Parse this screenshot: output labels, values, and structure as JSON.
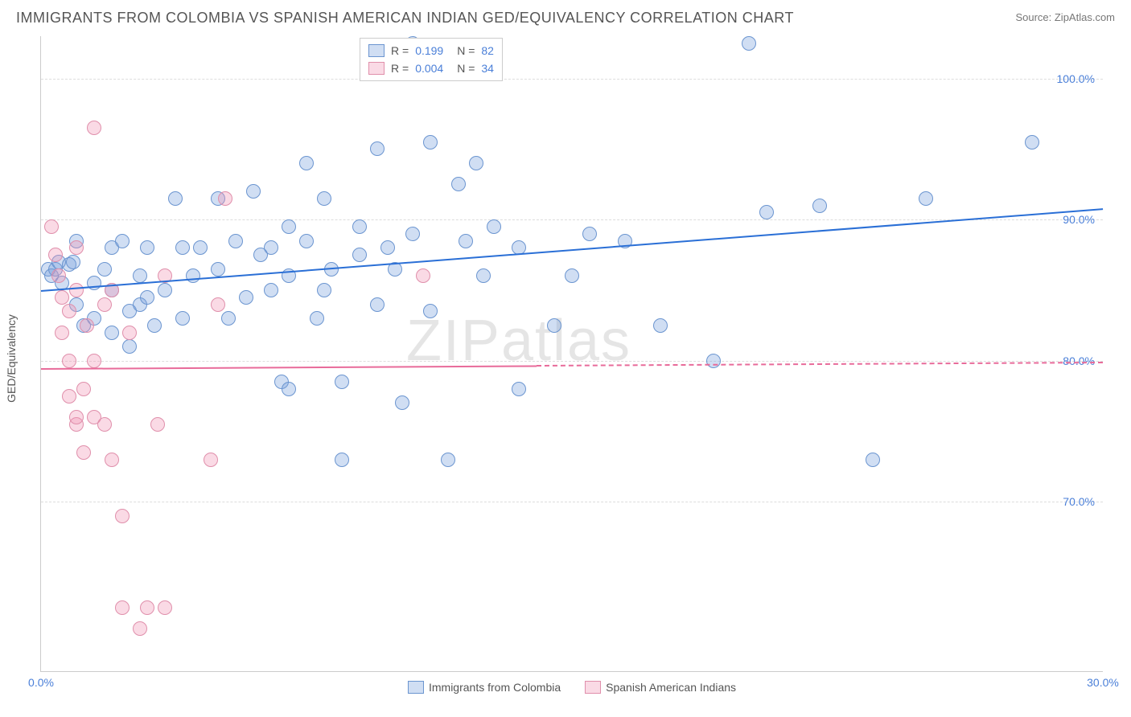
{
  "title": "IMMIGRANTS FROM COLOMBIA VS SPANISH AMERICAN INDIAN GED/EQUIVALENCY CORRELATION CHART",
  "source": "Source: ZipAtlas.com",
  "watermark_a": "ZIP",
  "watermark_b": "atlas",
  "chart": {
    "type": "scatter",
    "ylabel": "GED/Equivalency",
    "xlim": [
      0,
      30
    ],
    "ylim": [
      58,
      103
    ],
    "x_ticks": [
      {
        "v": 0,
        "label": "0.0%"
      },
      {
        "v": 30,
        "label": "30.0%"
      }
    ],
    "y_ticks": [
      {
        "v": 70,
        "label": "70.0%"
      },
      {
        "v": 80,
        "label": "80.0%"
      },
      {
        "v": 90,
        "label": "90.0%"
      },
      {
        "v": 100,
        "label": "100.0%"
      }
    ],
    "tick_color": "#4a7fd8",
    "grid_color": "#dddddd",
    "background": "#ffffff",
    "point_radius": 8,
    "series": [
      {
        "name": "Immigrants from Colombia",
        "fill": "rgba(120,160,220,0.35)",
        "stroke": "#6b95d0",
        "trend_color": "#2a6fd6",
        "trend": {
          "x1": 0,
          "y1": 85.0,
          "x2": 30,
          "y2": 90.8
        },
        "R": "0.199",
        "N": "82",
        "points": [
          [
            0.2,
            86.5
          ],
          [
            0.3,
            86.0
          ],
          [
            0.4,
            86.5
          ],
          [
            0.5,
            87.0
          ],
          [
            0.6,
            85.5
          ],
          [
            0.8,
            86.8
          ],
          [
            0.9,
            87.0
          ],
          [
            1.0,
            84.0
          ],
          [
            1.0,
            88.5
          ],
          [
            1.2,
            82.5
          ],
          [
            1.5,
            83.0
          ],
          [
            1.5,
            85.5
          ],
          [
            1.8,
            86.5
          ],
          [
            2.0,
            88.0
          ],
          [
            2.0,
            85.0
          ],
          [
            2.0,
            82.0
          ],
          [
            2.3,
            88.5
          ],
          [
            2.5,
            81.0
          ],
          [
            2.5,
            83.5
          ],
          [
            2.8,
            86.0
          ],
          [
            2.8,
            84.0
          ],
          [
            3.0,
            88.0
          ],
          [
            3.0,
            84.5
          ],
          [
            3.2,
            82.5
          ],
          [
            3.5,
            85.0
          ],
          [
            3.8,
            91.5
          ],
          [
            4.0,
            88.0
          ],
          [
            4.0,
            83.0
          ],
          [
            4.3,
            86.0
          ],
          [
            4.5,
            88.0
          ],
          [
            5.0,
            91.5
          ],
          [
            5.0,
            86.5
          ],
          [
            5.3,
            83.0
          ],
          [
            5.5,
            88.5
          ],
          [
            5.8,
            84.5
          ],
          [
            6.0,
            92.0
          ],
          [
            6.2,
            87.5
          ],
          [
            6.5,
            85.0
          ],
          [
            6.8,
            78.5
          ],
          [
            7.0,
            89.5
          ],
          [
            7.0,
            86.0
          ],
          [
            7.0,
            78.0
          ],
          [
            7.5,
            94.0
          ],
          [
            7.5,
            88.5
          ],
          [
            7.8,
            83.0
          ],
          [
            8.0,
            91.5
          ],
          [
            8.0,
            85.0
          ],
          [
            8.2,
            86.5
          ],
          [
            8.5,
            78.5
          ],
          [
            8.5,
            73.0
          ],
          [
            9.0,
            87.5
          ],
          [
            9.0,
            89.5
          ],
          [
            9.5,
            95.0
          ],
          [
            9.5,
            84.0
          ],
          [
            9.8,
            88.0
          ],
          [
            10.0,
            86.5
          ],
          [
            10.2,
            77.0
          ],
          [
            10.5,
            102.5
          ],
          [
            10.5,
            89.0
          ],
          [
            11.0,
            95.5
          ],
          [
            11.0,
            83.5
          ],
          [
            11.5,
            73.0
          ],
          [
            11.8,
            92.5
          ],
          [
            12.0,
            88.5
          ],
          [
            12.3,
            94.0
          ],
          [
            12.8,
            89.5
          ],
          [
            13.5,
            88.0
          ],
          [
            13.5,
            78.0
          ],
          [
            14.5,
            82.5
          ],
          [
            15.5,
            89.0
          ],
          [
            16.5,
            88.5
          ],
          [
            17.5,
            82.5
          ],
          [
            19.0,
            80.0
          ],
          [
            20.0,
            102.5
          ],
          [
            20.5,
            90.5
          ],
          [
            22.0,
            91.0
          ],
          [
            23.5,
            73.0
          ],
          [
            25.0,
            91.5
          ],
          [
            28.0,
            95.5
          ],
          [
            15.0,
            86.0
          ],
          [
            12.5,
            86.0
          ],
          [
            6.5,
            88.0
          ]
        ]
      },
      {
        "name": "Spanish American Indians",
        "fill": "rgba(240,150,180,0.35)",
        "stroke": "#e08fab",
        "trend_color": "#e86b9a",
        "trend": {
          "x1": 0,
          "y1": 79.5,
          "x2": 14,
          "y2": 79.7
        },
        "trend_dashed_to_x": 30,
        "R": "0.004",
        "N": "34",
        "points": [
          [
            0.3,
            89.5
          ],
          [
            0.4,
            87.5
          ],
          [
            0.5,
            86.0
          ],
          [
            0.6,
            84.5
          ],
          [
            0.6,
            82.0
          ],
          [
            0.8,
            80.0
          ],
          [
            0.8,
            83.5
          ],
          [
            0.8,
            77.5
          ],
          [
            1.0,
            75.5
          ],
          [
            1.0,
            76.0
          ],
          [
            1.0,
            85.0
          ],
          [
            1.2,
            78.0
          ],
          [
            1.2,
            73.5
          ],
          [
            1.3,
            82.5
          ],
          [
            1.5,
            96.5
          ],
          [
            1.5,
            80.0
          ],
          [
            1.5,
            76.0
          ],
          [
            1.8,
            84.0
          ],
          [
            1.8,
            75.5
          ],
          [
            2.0,
            85.0
          ],
          [
            2.0,
            73.0
          ],
          [
            2.3,
            69.0
          ],
          [
            2.3,
            62.5
          ],
          [
            2.5,
            82.0
          ],
          [
            2.8,
            61.0
          ],
          [
            3.0,
            62.5
          ],
          [
            3.3,
            75.5
          ],
          [
            3.5,
            86.0
          ],
          [
            3.5,
            62.5
          ],
          [
            4.8,
            73.0
          ],
          [
            5.0,
            84.0
          ],
          [
            5.2,
            91.5
          ],
          [
            10.8,
            86.0
          ],
          [
            1.0,
            88.0
          ]
        ]
      }
    ],
    "legend_top": {
      "rows": [
        {
          "swatch": 0,
          "r_label": "R =",
          "r_value": "0.199",
          "n_label": "N =",
          "n_value": "82"
        },
        {
          "swatch": 1,
          "r_label": "R =",
          "r_value": "0.004",
          "n_label": "N =",
          "n_value": "34"
        }
      ],
      "label_color": "#555555",
      "value_color": "#4a7fd8"
    }
  }
}
